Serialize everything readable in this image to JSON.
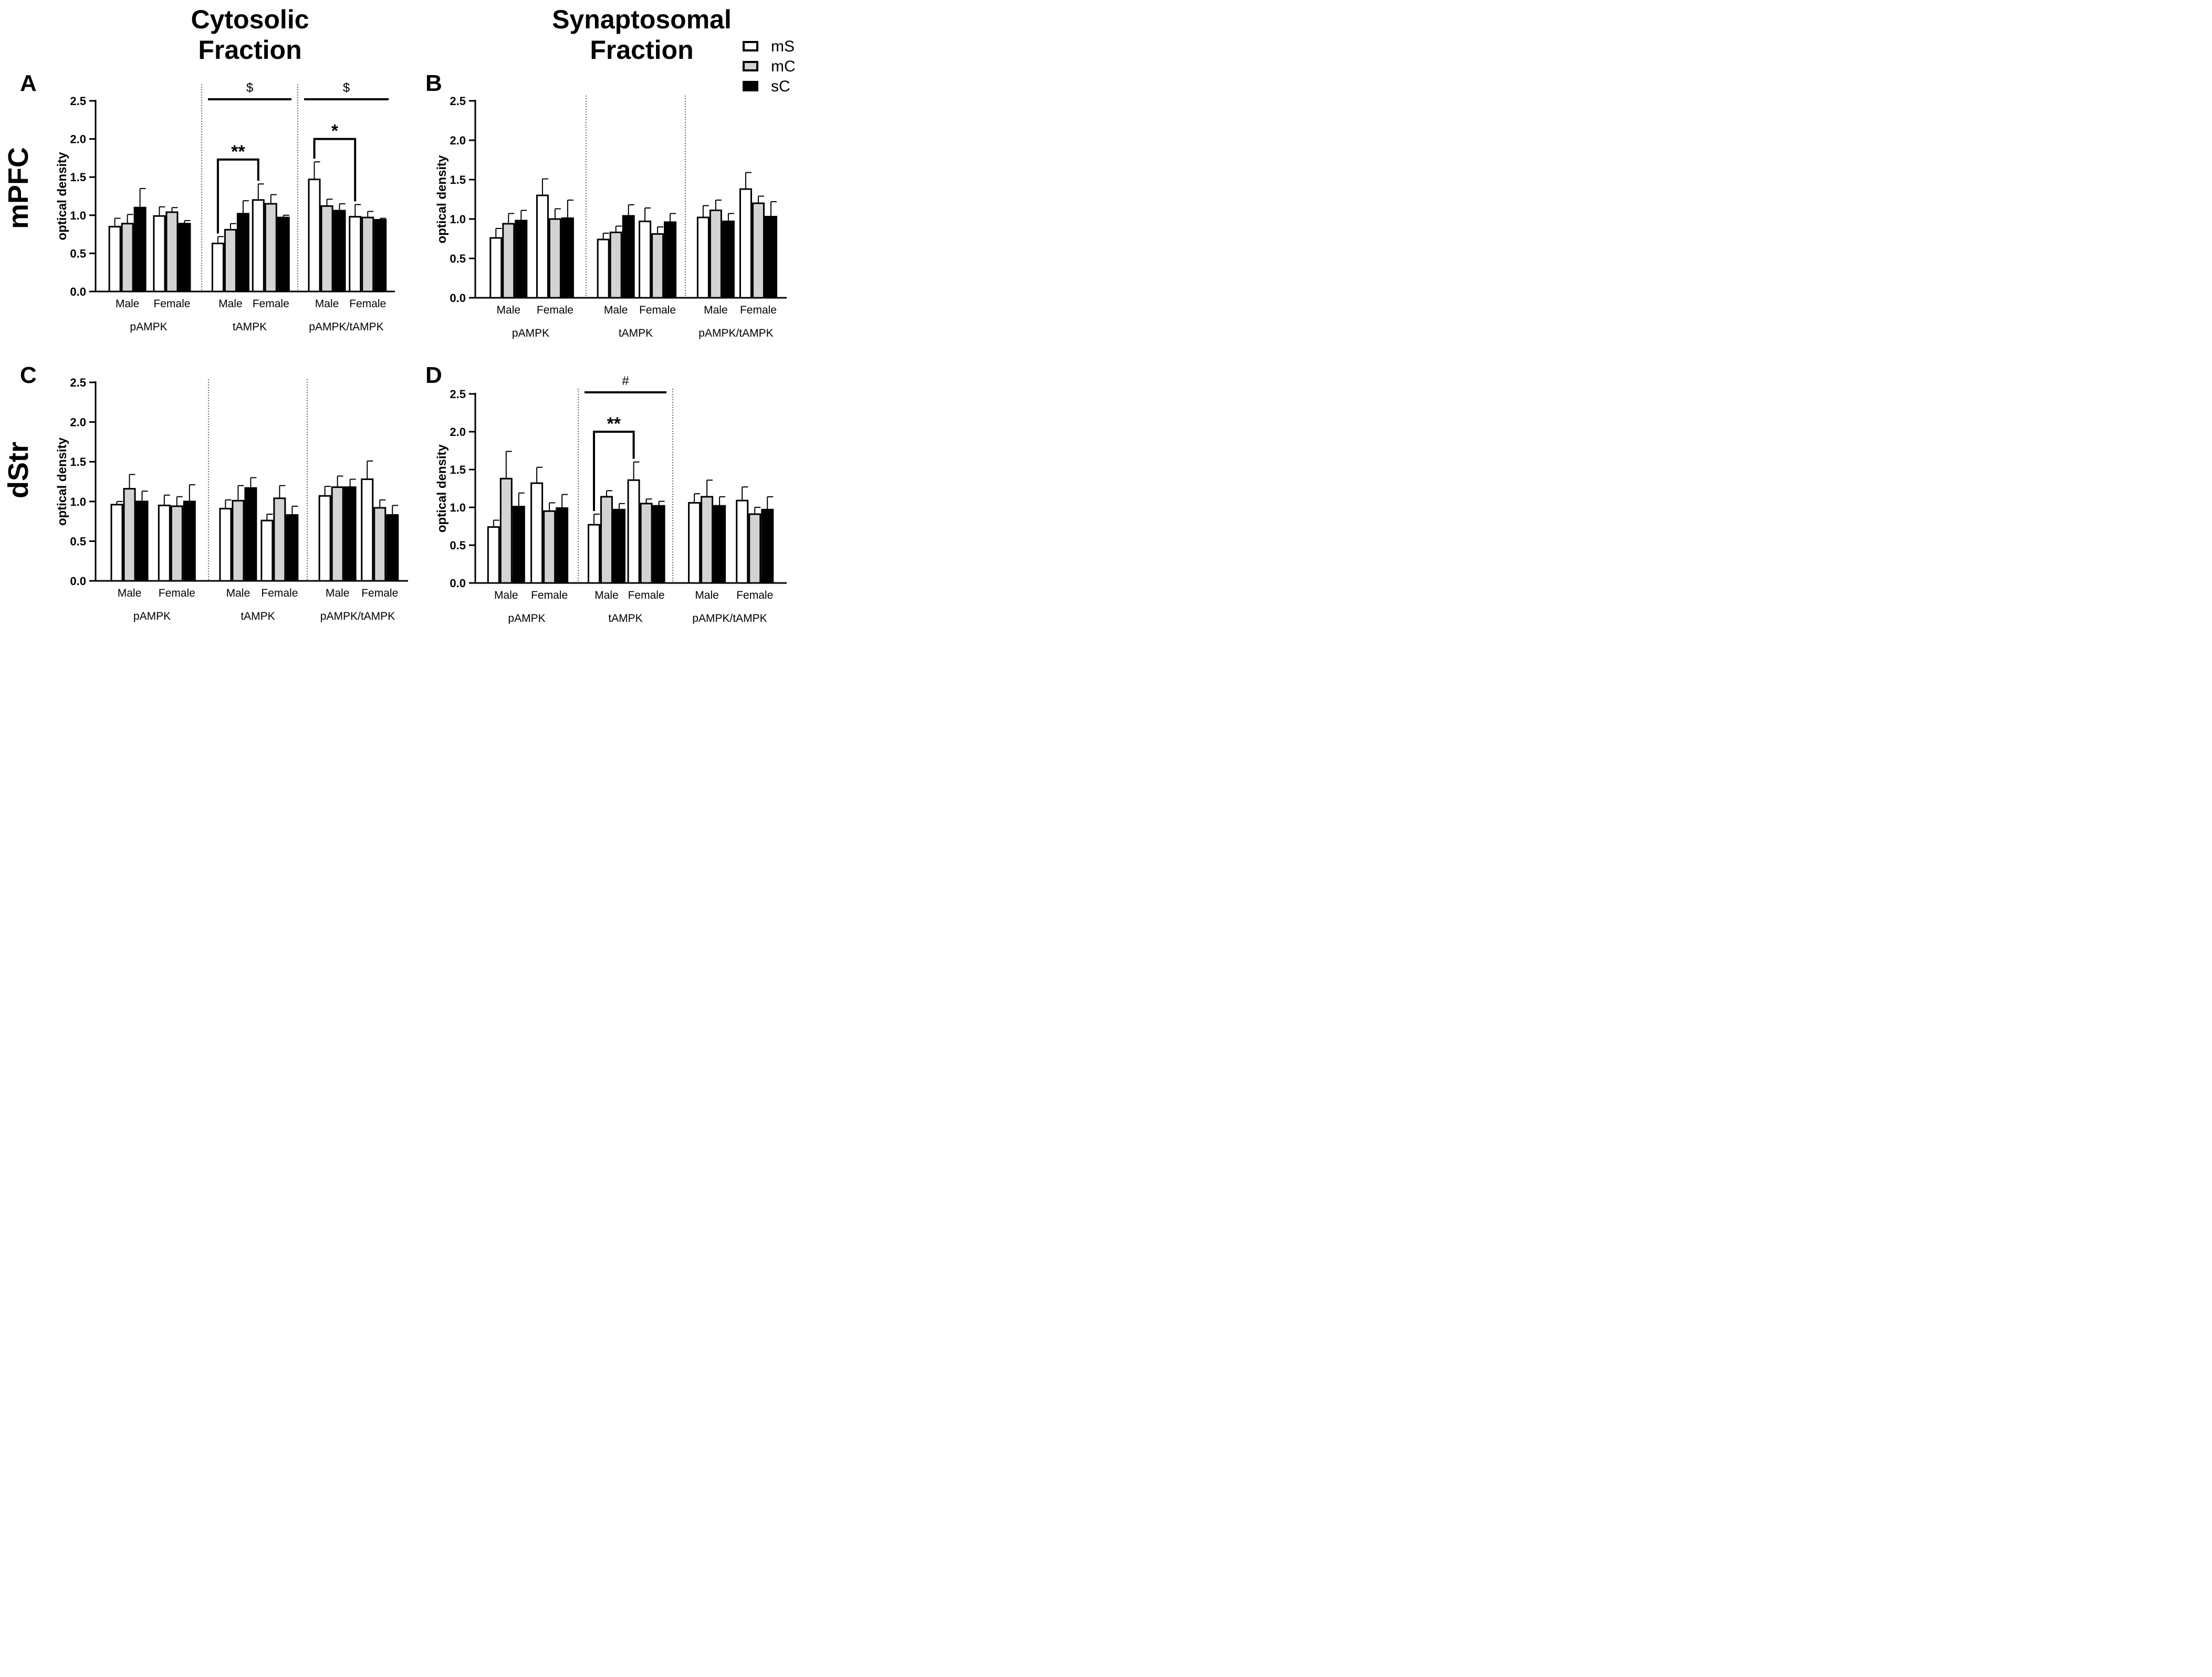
{
  "columns": {
    "left": "Cytosolic\nFraction",
    "right": "Synaptosomal\nFraction"
  },
  "rows": {
    "top": "mPFC",
    "bottom": "dStr"
  },
  "legend": [
    {
      "label": "mS",
      "color": "#ffffff"
    },
    {
      "label": "mC",
      "color": "#d3d3d3"
    },
    {
      "label": "sC",
      "color": "#000000"
    }
  ],
  "chart_data": [
    {
      "panel": "A",
      "type": "bar",
      "ylabel": "optical density",
      "ylim": [
        0,
        2.5
      ],
      "yticks": [
        "0.0",
        "0.5",
        "1.0",
        "1.5",
        "2.0",
        "2.5"
      ],
      "groups": [
        "pAMPK",
        "tAMPK",
        "pAMPK/tAMPK"
      ],
      "subgroups": [
        "Male",
        "Female"
      ],
      "values": [
        [
          [
            0.85,
            0.89,
            1.1
          ],
          [
            0.99,
            1.04,
            0.89
          ]
        ],
        [
          [
            0.63,
            0.81,
            1.02
          ],
          [
            1.2,
            1.15,
            0.97
          ]
        ],
        [
          [
            1.47,
            1.12,
            1.06
          ],
          [
            0.98,
            0.97,
            0.94
          ]
        ]
      ],
      "errors": [
        [
          [
            0.11,
            0.12,
            0.25
          ],
          [
            0.12,
            0.06,
            0.04
          ]
        ],
        [
          [
            0.09,
            0.08,
            0.17
          ],
          [
            0.21,
            0.12,
            0.03
          ]
        ],
        [
          [
            0.23,
            0.09,
            0.09
          ],
          [
            0.16,
            0.08,
            0.02
          ]
        ]
      ],
      "annotations": [
        {
          "type": "line",
          "text": "$",
          "group": 1
        },
        {
          "type": "line",
          "text": "$",
          "group": 2
        },
        {
          "type": "bracket",
          "text": "**",
          "group": 1,
          "y": 1.73
        },
        {
          "type": "bracket",
          "text": "*",
          "group": 2,
          "y": 2.0
        }
      ]
    },
    {
      "panel": "B",
      "type": "bar",
      "ylabel": "optical density",
      "ylim": [
        0,
        2.5
      ],
      "yticks": [
        "0.0",
        "0.5",
        "1.0",
        "1.5",
        "2.0",
        "2.5"
      ],
      "groups": [
        "pAMPK",
        "tAMPK",
        "pAMPK/tAMPK"
      ],
      "subgroups": [
        "Male",
        "Female"
      ],
      "values": [
        [
          [
            0.76,
            0.94,
            0.98
          ],
          [
            1.3,
            1.0,
            1.01
          ]
        ],
        [
          [
            0.74,
            0.83,
            1.04
          ],
          [
            0.97,
            0.81,
            0.96
          ]
        ],
        [
          [
            1.02,
            1.11,
            0.97
          ],
          [
            1.38,
            1.2,
            1.03
          ]
        ]
      ],
      "errors": [
        [
          [
            0.12,
            0.13,
            0.13
          ],
          [
            0.21,
            0.13,
            0.23
          ]
        ],
        [
          [
            0.08,
            0.08,
            0.14
          ],
          [
            0.17,
            0.09,
            0.11
          ]
        ],
        [
          [
            0.15,
            0.13,
            0.1
          ],
          [
            0.21,
            0.09,
            0.19
          ]
        ]
      ],
      "annotations": []
    },
    {
      "panel": "C",
      "type": "bar",
      "ylabel": "optical density",
      "ylim": [
        0,
        2.5
      ],
      "yticks": [
        "0.0",
        "0.5",
        "1.0",
        "1.5",
        "2.0",
        "2.5"
      ],
      "groups": [
        "pAMPK",
        "tAMPK",
        "pAMPK/tAMPK"
      ],
      "subgroups": [
        "Male",
        "Female"
      ],
      "values": [
        [
          [
            0.96,
            1.16,
            1.0
          ],
          [
            0.95,
            0.94,
            1.0
          ]
        ],
        [
          [
            0.91,
            1.01,
            1.17
          ],
          [
            0.76,
            1.04,
            0.83
          ]
        ],
        [
          [
            1.07,
            1.18,
            1.18
          ],
          [
            1.28,
            0.92,
            0.83
          ]
        ]
      ],
      "errors": [
        [
          [
            0.04,
            0.18,
            0.13
          ],
          [
            0.13,
            0.12,
            0.21
          ]
        ],
        [
          [
            0.11,
            0.19,
            0.13
          ],
          [
            0.08,
            0.16,
            0.11
          ]
        ],
        [
          [
            0.12,
            0.14,
            0.1
          ],
          [
            0.23,
            0.1,
            0.12
          ]
        ]
      ],
      "annotations": []
    },
    {
      "panel": "D",
      "type": "bar",
      "ylabel": "optical density",
      "ylim": [
        0,
        2.5
      ],
      "yticks": [
        "0.0",
        "0.5",
        "1.0",
        "1.5",
        "2.0",
        "2.5"
      ],
      "groups": [
        "pAMPK",
        "tAMPK",
        "pAMPK/tAMPK"
      ],
      "subgroups": [
        "Male",
        "Female"
      ],
      "values": [
        [
          [
            0.74,
            1.38,
            1.01
          ],
          [
            1.32,
            0.95,
            0.99
          ]
        ],
        [
          [
            0.77,
            1.14,
            0.97
          ],
          [
            1.36,
            1.05,
            1.02
          ]
        ],
        [
          [
            1.06,
            1.14,
            1.02
          ],
          [
            1.09,
            0.91,
            0.97
          ]
        ]
      ],
      "errors": [
        [
          [
            0.09,
            0.36,
            0.18
          ],
          [
            0.21,
            0.11,
            0.18
          ]
        ],
        [
          [
            0.14,
            0.08,
            0.08
          ],
          [
            0.24,
            0.06,
            0.06
          ]
        ],
        [
          [
            0.12,
            0.22,
            0.12
          ],
          [
            0.18,
            0.09,
            0.17
          ]
        ]
      ],
      "annotations": [
        {
          "type": "line",
          "text": "#",
          "group": 1
        },
        {
          "type": "bracket",
          "text": "**",
          "group": 1,
          "y": 2.0
        }
      ]
    }
  ]
}
